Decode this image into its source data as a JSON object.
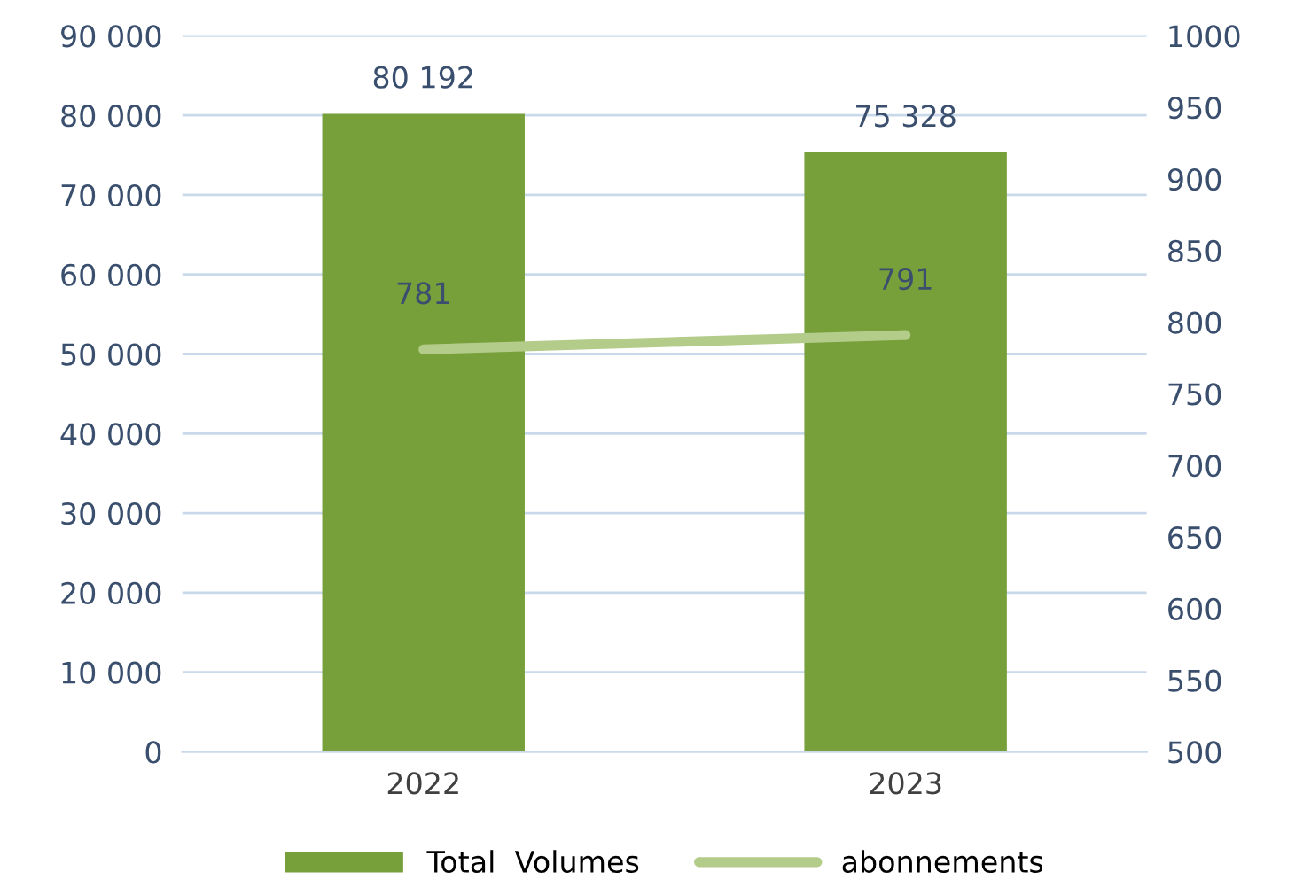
{
  "chart_data": {
    "type": "bar",
    "categories": [
      "2022",
      "2023"
    ],
    "series": [
      {
        "name": "Total  Volumes",
        "color": "#77a03a",
        "values": [
          80192,
          75328
        ],
        "value_labels": [
          "80 192",
          "75 328"
        ]
      },
      {
        "name": "abonnements",
        "type": "line",
        "axis": "y2",
        "color": "#b3cc8a",
        "values": [
          781,
          791
        ],
        "value_labels": [
          "781",
          "791"
        ]
      }
    ],
    "ylim": [
      0,
      90000
    ],
    "yticks": [
      {
        "value": 0,
        "label": "0"
      },
      {
        "value": 10000,
        "label": "10 000"
      },
      {
        "value": 20000,
        "label": "20 000"
      },
      {
        "value": 30000,
        "label": "30 000"
      },
      {
        "value": 40000,
        "label": "40 000"
      },
      {
        "value": 50000,
        "label": "50 000"
      },
      {
        "value": 60000,
        "label": "60 000"
      },
      {
        "value": 70000,
        "label": "70 000"
      },
      {
        "value": 80000,
        "label": "80 000"
      },
      {
        "value": 90000,
        "label": "90 000"
      }
    ],
    "y2lim": [
      500,
      1000
    ],
    "y2ticks": [
      500,
      550,
      600,
      650,
      700,
      750,
      800,
      850,
      900,
      950,
      1000
    ],
    "grid": "y",
    "legend": "bottom",
    "marker": "none",
    "line_style": "solid"
  }
}
